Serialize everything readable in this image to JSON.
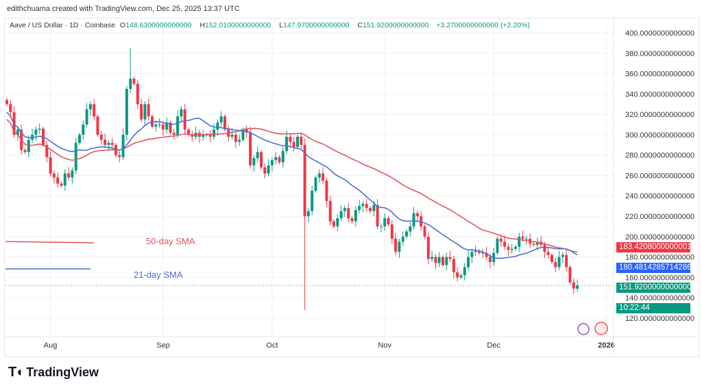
{
  "credit": "edithchuama created with TradingView.com, Dec 25, 2025 13:37 UTC",
  "legend": {
    "symbol": "Aave / US Dollar · 1D · Coinbase",
    "o_label": "O",
    "o": "148.6300000000000",
    "h_label": "H",
    "h": "152.0100000000000",
    "l_label": "L",
    "l": "147.9700000000000",
    "c_label": "C",
    "c": "151.9200000000000",
    "change": "+3.2700000000000 (+2.20%)"
  },
  "badges": {
    "sma50": "183.4208000000001",
    "sma21": "180.4814285714286",
    "last": "151.9200000000000",
    "countdown": "10:22:44"
  },
  "annotations": {
    "sma50_label": "50-day SMA",
    "sma21_label": "21-day SMA"
  },
  "logo": "TradingView",
  "colors": {
    "up": "#089981",
    "down": "#f23645",
    "sma50": "#e05560",
    "sma21": "#4a6fd6"
  },
  "chart_data": {
    "type": "candlestick",
    "start_date": "2025-07-20",
    "interval": "1D",
    "ylim": [
      110,
      410
    ],
    "y_ticks": [
      "400.0000000000000",
      "380.0000000000000",
      "360.0000000000000",
      "340.0000000000000",
      "320.0000000000000",
      "300.0000000000000",
      "280.0000000000000",
      "260.0000000000000",
      "240.0000000000000",
      "220.0000000000000",
      "200.0000000000000",
      "180.0000000000000",
      "160.0000000000000",
      "140.0000000000000",
      "120.0000000000000"
    ],
    "y_tick_values": [
      400,
      380,
      360,
      340,
      320,
      300,
      280,
      260,
      240,
      220,
      200,
      180,
      160,
      140,
      120
    ],
    "x_ticks": [
      {
        "label": "Aug",
        "date": "2025-08-01"
      },
      {
        "label": "Sep",
        "date": "2025-09-01"
      },
      {
        "label": "Oct",
        "date": "2025-10-01"
      },
      {
        "label": "Nov",
        "date": "2025-11-01"
      },
      {
        "label": "Dec",
        "date": "2025-12-01"
      },
      {
        "label": "2026",
        "date": "2026-01-01"
      }
    ],
    "close": [
      330,
      322,
      300,
      305,
      285,
      283,
      295,
      300,
      305,
      306,
      290,
      278,
      262,
      258,
      252,
      250,
      262,
      258,
      265,
      292,
      300,
      310,
      325,
      330,
      318,
      300,
      295,
      290,
      292,
      290,
      280,
      278,
      300,
      345,
      355,
      350,
      330,
      315,
      330,
      318,
      308,
      310,
      310,
      305,
      312,
      302,
      300,
      318,
      325,
      305,
      300,
      298,
      302,
      298,
      300,
      300,
      298,
      305,
      312,
      318,
      305,
      298,
      300,
      293,
      295,
      305,
      302,
      270,
      277,
      283,
      268,
      262,
      270,
      275,
      278,
      273,
      284,
      298,
      293,
      288,
      298,
      290,
      220,
      225,
      245,
      258,
      262,
      255,
      235,
      215,
      210,
      218,
      225,
      228,
      218,
      215,
      226,
      230,
      232,
      228,
      225,
      231,
      210,
      210,
      218,
      212,
      198,
      185,
      195,
      200,
      205,
      210,
      223,
      220,
      210,
      200,
      178,
      180,
      174,
      180,
      172,
      180,
      178,
      165,
      160,
      162,
      170,
      180,
      185,
      186,
      184,
      184,
      180,
      175,
      184,
      198,
      195,
      190,
      187,
      188,
      190,
      200,
      198,
      198,
      193,
      192,
      195,
      192,
      185,
      182,
      175,
      170,
      180,
      182,
      170,
      155,
      149,
      151.92
    ],
    "notable_extremes": [
      {
        "date": "2025-08-23",
        "high": 385
      },
      {
        "date": "2025-10-10",
        "low": 128
      }
    ],
    "series": [
      {
        "name": "50-day SMA",
        "type": "sma",
        "period": 50,
        "last": 183.42
      },
      {
        "name": "21-day SMA",
        "type": "sma",
        "period": 21,
        "last": 180.48
      }
    ],
    "last_price": 151.92
  }
}
